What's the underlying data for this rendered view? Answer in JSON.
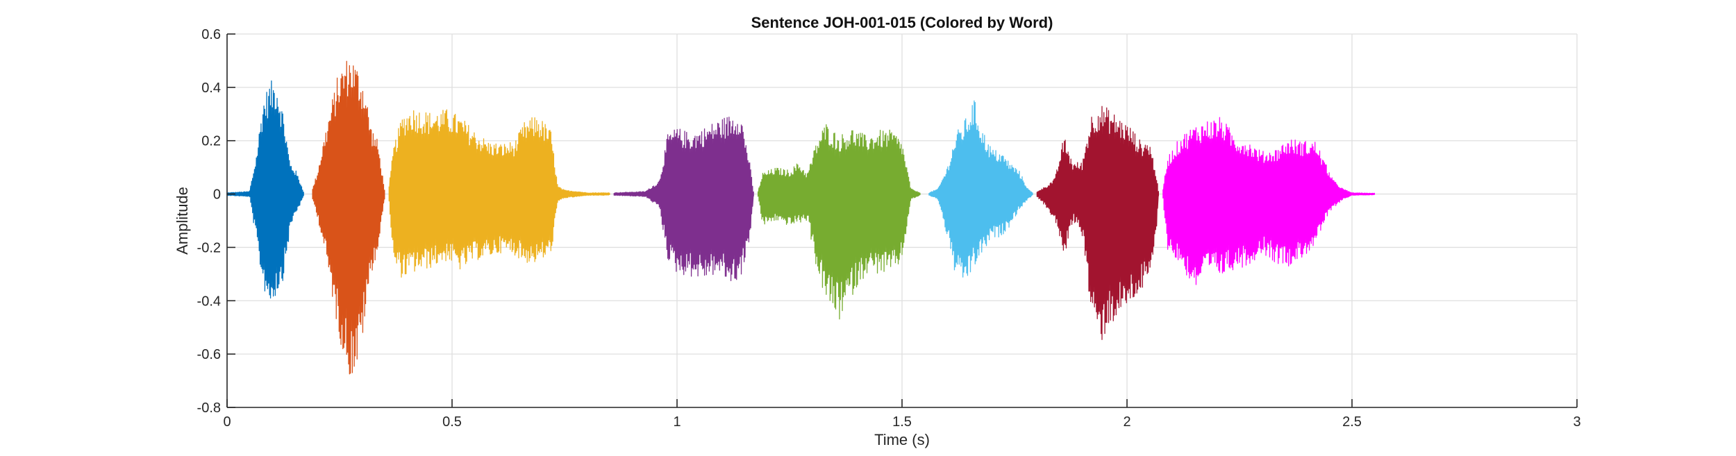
{
  "chart_data": {
    "type": "line",
    "title": "Sentence JOH-001-015 (Colored by Word)",
    "xlabel": "Time (s)",
    "ylabel": "Amplitude",
    "xlim": [
      0,
      3
    ],
    "ylim": [
      -0.8,
      0.6
    ],
    "grid": true,
    "legend": "none",
    "xticks": [
      0,
      0.5,
      1,
      1.5,
      2,
      2.5,
      3
    ],
    "xtick_labels": [
      "0",
      "0.5",
      "1",
      "1.5",
      "2",
      "2.5",
      "3"
    ],
    "yticks": [
      0.6,
      0.4,
      0.2,
      0,
      -0.2,
      -0.4,
      -0.6,
      -0.8
    ],
    "ytick_labels": [
      "0.6",
      "0.4",
      "0.2",
      "0",
      "-0.2",
      "-0.4",
      "-0.6",
      "-0.8"
    ],
    "series": [
      {
        "color": "#0072BD",
        "t_start": 0.0,
        "t_end": 0.17,
        "envelope_t": [
          0.0,
          0.05,
          0.065,
          0.08,
          0.095,
          0.11,
          0.125,
          0.14,
          0.15,
          0.16,
          0.17
        ],
        "envelope_max": [
          0.005,
          0.01,
          0.15,
          0.36,
          0.42,
          0.44,
          0.31,
          0.12,
          0.1,
          0.06,
          0.01
        ],
        "envelope_min": [
          -0.005,
          -0.01,
          -0.18,
          -0.35,
          -0.42,
          -0.38,
          -0.32,
          -0.14,
          -0.08,
          -0.05,
          -0.01
        ]
      },
      {
        "color": "#D95319",
        "t_start": 0.19,
        "t_end": 0.35,
        "envelope_t": [
          0.19,
          0.2,
          0.215,
          0.23,
          0.245,
          0.26,
          0.275,
          0.29,
          0.305,
          0.32,
          0.335,
          0.35
        ],
        "envelope_max": [
          0.02,
          0.08,
          0.21,
          0.33,
          0.44,
          0.5,
          0.53,
          0.48,
          0.42,
          0.26,
          0.2,
          0.02
        ],
        "envelope_min": [
          -0.02,
          -0.08,
          -0.2,
          -0.35,
          -0.5,
          -0.62,
          -0.7,
          -0.65,
          -0.5,
          -0.3,
          -0.22,
          -0.02
        ]
      },
      {
        "color": "#EDB120",
        "t_start": 0.36,
        "t_end": 0.85,
        "envelope_t": [
          0.36,
          0.37,
          0.39,
          0.41,
          0.45,
          0.49,
          0.52,
          0.55,
          0.58,
          0.61,
          0.64,
          0.66,
          0.69,
          0.72,
          0.735,
          0.75,
          0.78,
          0.8,
          0.85
        ],
        "envelope_max": [
          0.03,
          0.18,
          0.3,
          0.33,
          0.31,
          0.32,
          0.29,
          0.24,
          0.2,
          0.19,
          0.2,
          0.27,
          0.3,
          0.24,
          0.03,
          0.015,
          0.01,
          0.005,
          0.005
        ],
        "envelope_min": [
          -0.03,
          -0.27,
          -0.32,
          -0.3,
          -0.28,
          -0.25,
          -0.29,
          -0.25,
          -0.24,
          -0.22,
          -0.23,
          -0.26,
          -0.26,
          -0.23,
          -0.03,
          -0.015,
          -0.01,
          -0.005,
          -0.005
        ]
      },
      {
        "color": "#7E2F8E",
        "t_start": 0.86,
        "t_end": 1.17,
        "envelope_t": [
          0.86,
          0.93,
          0.96,
          0.98,
          1.0,
          1.03,
          1.06,
          1.09,
          1.12,
          1.14,
          1.16,
          1.17
        ],
        "envelope_max": [
          0.005,
          0.01,
          0.05,
          0.23,
          0.25,
          0.23,
          0.25,
          0.28,
          0.3,
          0.32,
          0.14,
          0.01
        ],
        "envelope_min": [
          -0.005,
          -0.01,
          -0.05,
          -0.25,
          -0.3,
          -0.31,
          -0.32,
          -0.3,
          -0.34,
          -0.32,
          -0.2,
          -0.01
        ]
      },
      {
        "color": "#77AC30",
        "t_start": 1.18,
        "t_end": 1.54,
        "envelope_t": [
          1.18,
          1.19,
          1.22,
          1.25,
          1.27,
          1.29,
          1.31,
          1.33,
          1.36,
          1.39,
          1.42,
          1.45,
          1.48,
          1.5,
          1.52,
          1.54
        ],
        "envelope_max": [
          0.01,
          0.08,
          0.1,
          0.09,
          0.12,
          0.08,
          0.2,
          0.27,
          0.22,
          0.25,
          0.22,
          0.24,
          0.24,
          0.2,
          0.02,
          0.005
        ],
        "envelope_min": [
          -0.01,
          -0.12,
          -0.1,
          -0.12,
          -0.11,
          -0.1,
          -0.28,
          -0.4,
          -0.48,
          -0.38,
          -0.3,
          -0.3,
          -0.3,
          -0.25,
          -0.02,
          -0.005
        ]
      },
      {
        "color": "#4DBEEE",
        "t_start": 1.56,
        "t_end": 1.79,
        "envelope_t": [
          1.56,
          1.58,
          1.6,
          1.62,
          1.64,
          1.66,
          1.68,
          1.7,
          1.72,
          1.74,
          1.76,
          1.78,
          1.79
        ],
        "envelope_max": [
          0.005,
          0.02,
          0.1,
          0.23,
          0.28,
          0.36,
          0.24,
          0.17,
          0.16,
          0.12,
          0.09,
          0.02,
          0.005
        ],
        "envelope_min": [
          -0.005,
          -0.02,
          -0.16,
          -0.32,
          -0.34,
          -0.28,
          -0.22,
          -0.17,
          -0.16,
          -0.12,
          -0.06,
          -0.02,
          -0.005
        ]
      },
      {
        "color": "#A2142F",
        "t_start": 1.8,
        "t_end": 2.07,
        "envelope_t": [
          1.8,
          1.82,
          1.84,
          1.86,
          1.88,
          1.9,
          1.92,
          1.94,
          1.96,
          1.99,
          2.01,
          2.03,
          2.05,
          2.065,
          2.07
        ],
        "envelope_max": [
          0.01,
          0.03,
          0.06,
          0.22,
          0.12,
          0.12,
          0.3,
          0.34,
          0.32,
          0.28,
          0.25,
          0.2,
          0.2,
          0.08,
          0.01
        ],
        "envelope_min": [
          -0.01,
          -0.05,
          -0.1,
          -0.24,
          -0.1,
          -0.15,
          -0.45,
          -0.57,
          -0.5,
          -0.45,
          -0.41,
          -0.37,
          -0.34,
          -0.15,
          -0.01
        ]
      },
      {
        "color": "#FF00FF",
        "t_start": 2.08,
        "t_end": 2.55,
        "envelope_t": [
          2.08,
          2.09,
          2.12,
          2.15,
          2.18,
          2.21,
          2.24,
          2.27,
          2.3,
          2.33,
          2.36,
          2.39,
          2.42,
          2.44,
          2.46,
          2.48,
          2.5,
          2.55
        ],
        "envelope_max": [
          0.02,
          0.14,
          0.22,
          0.26,
          0.28,
          0.29,
          0.22,
          0.2,
          0.16,
          0.17,
          0.21,
          0.2,
          0.2,
          0.12,
          0.05,
          0.02,
          0.005,
          0.003
        ],
        "envelope_min": [
          -0.02,
          -0.21,
          -0.27,
          -0.36,
          -0.3,
          -0.31,
          -0.28,
          -0.27,
          -0.22,
          -0.26,
          -0.27,
          -0.24,
          -0.19,
          -0.1,
          -0.05,
          -0.02,
          -0.005,
          -0.003
        ]
      }
    ]
  }
}
